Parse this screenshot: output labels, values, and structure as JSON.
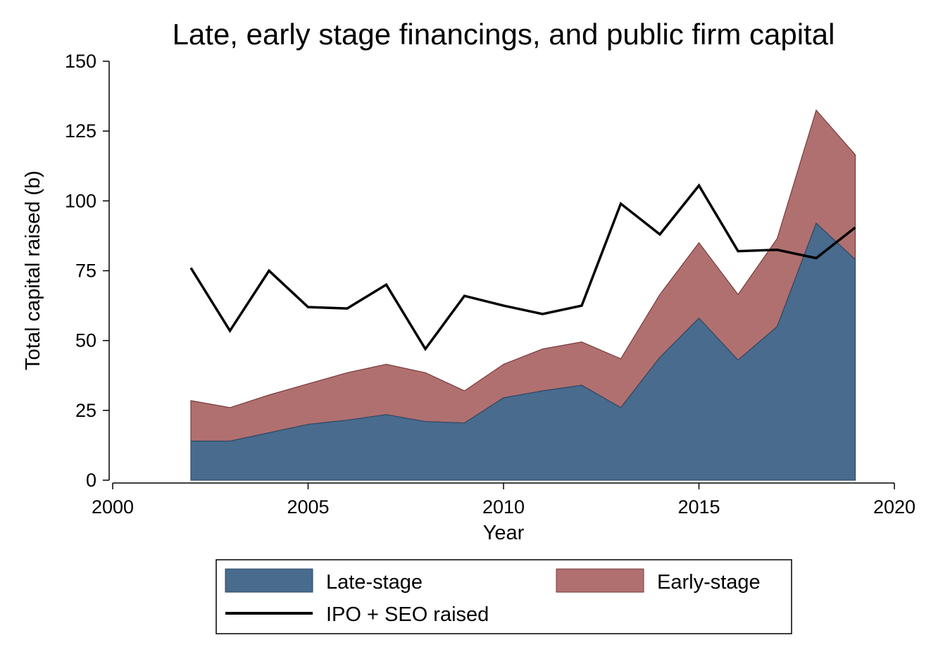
{
  "chart_data": {
    "type": "area",
    "title": "Late, early stage financings, and public firm capital",
    "xlabel": "Year",
    "ylabel": "Total capital raised (b)",
    "xlim": [
      2000,
      2020
    ],
    "ylim": [
      0,
      150
    ],
    "x_ticks": [
      2000,
      2005,
      2010,
      2015,
      2020
    ],
    "y_ticks": [
      0,
      25,
      50,
      75,
      100,
      125,
      150
    ],
    "grid": false,
    "legend_position": "bottom",
    "x": [
      2002,
      2003,
      2004,
      2005,
      2006,
      2007,
      2008,
      2009,
      2010,
      2011,
      2012,
      2013,
      2014,
      2015,
      2016,
      2017,
      2018,
      2019
    ],
    "series": [
      {
        "name": "Late-stage",
        "kind": "area",
        "color": "#486b8e",
        "values": [
          14,
          14,
          17,
          20,
          21.5,
          23.5,
          21,
          20.5,
          29.5,
          32,
          34,
          26,
          44,
          58,
          43,
          55,
          92,
          79
        ]
      },
      {
        "name": "Early-stage",
        "kind": "area",
        "stacked_on": "Late-stage",
        "color": "#b07070",
        "values": [
          14.5,
          12,
          13.5,
          14.5,
          17,
          18,
          17.5,
          11.5,
          12,
          15,
          15.5,
          17.5,
          22.5,
          27,
          23.5,
          31.5,
          40.5,
          37.5
        ]
      },
      {
        "name": "IPO + SEO raised",
        "kind": "line",
        "color": "#000000",
        "values": [
          76,
          53.5,
          75,
          62,
          61.5,
          70,
          47,
          66,
          62.5,
          59.5,
          62.5,
          99,
          88,
          105.5,
          82,
          82.5,
          79.5,
          90.5
        ]
      }
    ]
  }
}
